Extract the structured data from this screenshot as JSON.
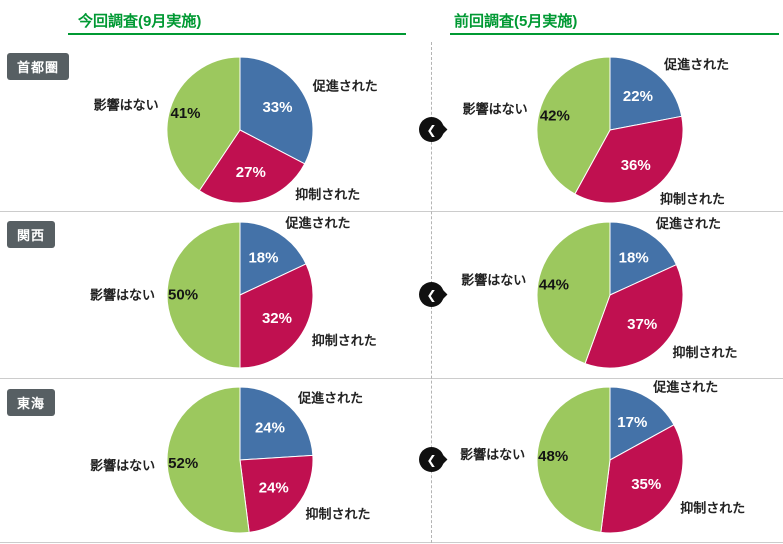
{
  "headers": {
    "current": "今回調査(9月実施)",
    "previous": "前回調査(5月実施)"
  },
  "regions": [
    "首都圏",
    "関西",
    "東海"
  ],
  "marker_glyph": "❮",
  "colors": {
    "promoted_blue": "#4472a8",
    "suppressed_red": "#c01050",
    "no_effect_green": "#9cc85e",
    "header_green": "#009933",
    "badge_bg": "#575f63",
    "separator_gray": "#cccccc",
    "marker_black": "#101010"
  },
  "slice_colors": [
    "#4472a8",
    "#c01050",
    "#9cc85e"
  ],
  "slice_keys": [
    "promoted",
    "suppressed",
    "no-effect"
  ],
  "slice_labels": [
    "促進された",
    "抑制された",
    "影響はない"
  ],
  "chart_layout": {
    "start_angle": "top",
    "direction": "clockwise",
    "category_label_position": "outside",
    "value_label_position": "inside"
  },
  "chart_data": [
    {
      "type": "pie",
      "region": "首都圏",
      "survey": "今回調査(9月実施)",
      "labels": [
        "促進された",
        "抑制された",
        "影響はない"
      ],
      "values": [
        33,
        27,
        41
      ]
    },
    {
      "type": "pie",
      "region": "首都圏",
      "survey": "前回調査(5月実施)",
      "labels": [
        "促進された",
        "抑制された",
        "影響はない"
      ],
      "values": [
        22,
        36,
        42
      ]
    },
    {
      "type": "pie",
      "region": "関西",
      "survey": "今回調査(9月実施)",
      "labels": [
        "促進された",
        "抑制された",
        "影響はない"
      ],
      "values": [
        18,
        32,
        50
      ]
    },
    {
      "type": "pie",
      "region": "関西",
      "survey": "前回調査(5月実施)",
      "labels": [
        "促進された",
        "抑制された",
        "影響はない"
      ],
      "values": [
        18,
        37,
        44
      ]
    },
    {
      "type": "pie",
      "region": "東海",
      "survey": "今回調査(9月実施)",
      "labels": [
        "促進された",
        "抑制された",
        "影響はない"
      ],
      "values": [
        24,
        24,
        52
      ]
    },
    {
      "type": "pie",
      "region": "東海",
      "survey": "前回調査(5月実施)",
      "labels": [
        "促進された",
        "抑制された",
        "影響はない"
      ],
      "values": [
        17,
        35,
        48
      ]
    }
  ]
}
